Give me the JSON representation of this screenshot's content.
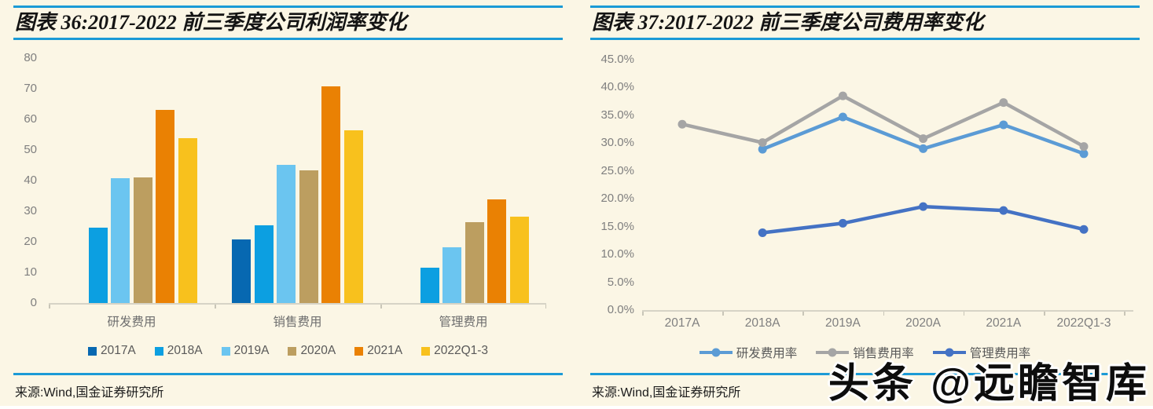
{
  "watermark": "头条 @远瞻智库",
  "colors": {
    "rule": "#1B9AD6",
    "background": "#FBF6E5",
    "axis_text": "#7F7F7F",
    "label_text": "#595959",
    "axis_line": "#D6D3C6"
  },
  "panels": [
    {
      "id": "left",
      "title": "图表 36:2017-2022 前三季度公司利润率变化",
      "source": "来源:Wind,国金证券研究所"
    },
    {
      "id": "right",
      "title": "图表 37:2017-2022 前三季度公司费用率变化",
      "source": "来源:Wind,国金证券研究所"
    }
  ],
  "chart_data": [
    {
      "type": "bar",
      "title": "图表 36:2017-2022 前三季度公司利润率变化",
      "categories": [
        "研发费用",
        "销售费用",
        "管理费用"
      ],
      "series": [
        {
          "name": "2017A",
          "color": "#0768B1",
          "values": [
            null,
            20.8,
            null
          ]
        },
        {
          "name": "2018A",
          "color": "#0C9FE1",
          "values": [
            24.5,
            25.5,
            11.6
          ]
        },
        {
          "name": "2019A",
          "color": "#6BC5F0",
          "values": [
            40.7,
            45.1,
            18.3
          ]
        },
        {
          "name": "2020A",
          "color": "#BC9E60",
          "values": [
            41.0,
            43.4,
            26.3
          ]
        },
        {
          "name": "2021A",
          "color": "#EA8103",
          "values": [
            63.2,
            70.9,
            33.9
          ]
        },
        {
          "name": "2022Q1-3",
          "color": "#F8C11D",
          "values": [
            53.8,
            56.4,
            28.3
          ]
        }
      ],
      "ylim": [
        0,
        80
      ],
      "ytick_labels": [
        "0",
        "10",
        "20",
        "30",
        "40",
        "50",
        "60",
        "70",
        "80"
      ],
      "grid": false,
      "legend_position": "bottom",
      "xlabel": "",
      "ylabel": ""
    },
    {
      "type": "line",
      "title": "图表 37:2017-2022 前三季度公司费用率变化",
      "x": [
        "2017A",
        "2018A",
        "2019A",
        "2020A",
        "2021A",
        "2022Q1-3"
      ],
      "series": [
        {
          "name": "研发费用率",
          "color": "#5B9BD5",
          "values": [
            null,
            28.9,
            34.7,
            29.0,
            33.3,
            28.1
          ]
        },
        {
          "name": "销售费用率",
          "color": "#A5A5A5",
          "values": [
            33.4,
            30.1,
            38.5,
            30.8,
            37.3,
            29.4
          ]
        },
        {
          "name": "管理费用率",
          "color": "#4472C4",
          "values": [
            null,
            13.9,
            15.6,
            18.6,
            17.9,
            14.5
          ]
        }
      ],
      "ylim": [
        0,
        45
      ],
      "ytick_labels": [
        "0.0%",
        "5.0%",
        "10.0%",
        "15.0%",
        "20.0%",
        "25.0%",
        "30.0%",
        "35.0%",
        "40.0%",
        "45.0%"
      ],
      "grid": false,
      "legend_position": "bottom",
      "xlabel": "",
      "ylabel": ""
    }
  ]
}
